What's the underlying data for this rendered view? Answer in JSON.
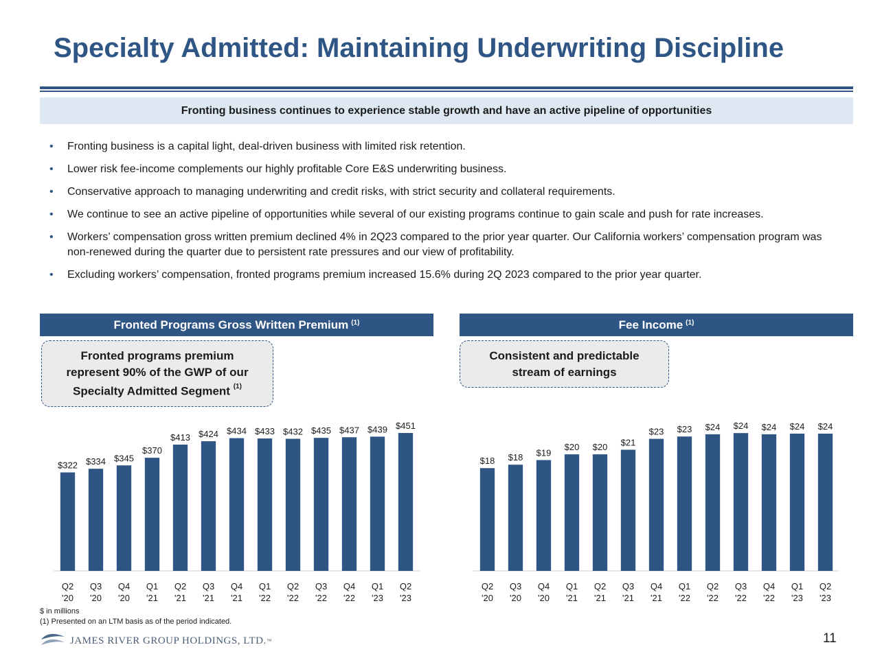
{
  "title": "Specialty Admitted: Maintaining Underwriting Discipline",
  "banner": "Fronting business continues to experience stable growth and have an active pipeline of opportunities",
  "bullets": [
    "Fronting business is a capital light, deal-driven business with limited risk retention.",
    "Lower risk fee-income complements our highly profitable Core E&S underwriting business.",
    "Conservative approach to managing underwriting and credit risks, with strict security and collateral requirements.",
    "We continue to see an active pipeline of opportunities while several of our existing programs continue to gain scale and push for rate increases.",
    "Workers’ compensation gross written premium declined 4% in 2Q23 compared to the prior year quarter. Our California workers’ compensation program was non-renewed during the quarter due to persistent rate pressures and our view of profitability.",
    "Excluding workers’ compensation, fronted programs premium increased 15.6% during 2Q 2023 compared to the prior year quarter."
  ],
  "bullet_marker": "•",
  "left_panel": {
    "header": "Fronted Programs Gross Written Premium",
    "footnote_ref": "(1)",
    "callout_line1": "Fronted programs premium",
    "callout_line2": "represent 90% of the GWP of our",
    "callout_line3": "Specialty Admitted Segment",
    "callout_ref": "(1)"
  },
  "right_panel": {
    "header": "Fee Income",
    "footnote_ref": "(1)",
    "callout_line1": "Consistent and predictable",
    "callout_line2": "stream of earnings"
  },
  "chart_data": [
    {
      "type": "bar",
      "title": "Fronted Programs Gross Written Premium",
      "categories": [
        "Q2 '20",
        "Q3 '20",
        "Q4 '20",
        "Q1 '21",
        "Q2 '21",
        "Q3 '21",
        "Q4 '21",
        "Q1 '22",
        "Q2 '22",
        "Q3 '22",
        "Q4 '22",
        "Q1 '23",
        "Q2 '23"
      ],
      "values": [
        322,
        334,
        345,
        370,
        413,
        424,
        434,
        433,
        432,
        435,
        437,
        439,
        451
      ],
      "labels": [
        "$322",
        "$334",
        "$345",
        "$370",
        "$413",
        "$424",
        "$434",
        "$433",
        "$432",
        "$435",
        "$437",
        "$439",
        "$451"
      ],
      "ylim": [
        0,
        460
      ],
      "xlabel": "",
      "ylabel": "",
      "bar_color": "#2e5584"
    },
    {
      "type": "bar",
      "title": "Fee Income",
      "categories": [
        "Q2 '20",
        "Q3 '20",
        "Q4 '20",
        "Q1 '21",
        "Q2 '21",
        "Q3 '21",
        "Q4 '21",
        "Q1 '22",
        "Q2 '22",
        "Q3 '22",
        "Q4 '22",
        "Q1 '23",
        "Q2 '23"
      ],
      "values": [
        17.9,
        18.5,
        19.3,
        20.3,
        20.3,
        21.1,
        23.0,
        23.4,
        23.8,
        24.0,
        23.8,
        23.9,
        23.9
      ],
      "labels": [
        "$18",
        "$18",
        "$19",
        "$20",
        "$20",
        "$21",
        "$23",
        "$23",
        "$24",
        "$24",
        "$24",
        "$24",
        "$24"
      ],
      "ylim": [
        0,
        24.5
      ],
      "xlabel": "",
      "ylabel": "",
      "bar_color": "#2e5584"
    }
  ],
  "footnotes": {
    "units": "$ in millions",
    "note1": "(1)   Presented on an LTM basis as of the period indicated."
  },
  "page_number": "11",
  "logo_text": "JAMES RIVER GROUP HOLDINGS, LTD.",
  "logo_mark": "™",
  "colors": {
    "brand": "#2e5584",
    "banner_bg": "#dde8f3",
    "callout_bg": "#ebebeb"
  }
}
